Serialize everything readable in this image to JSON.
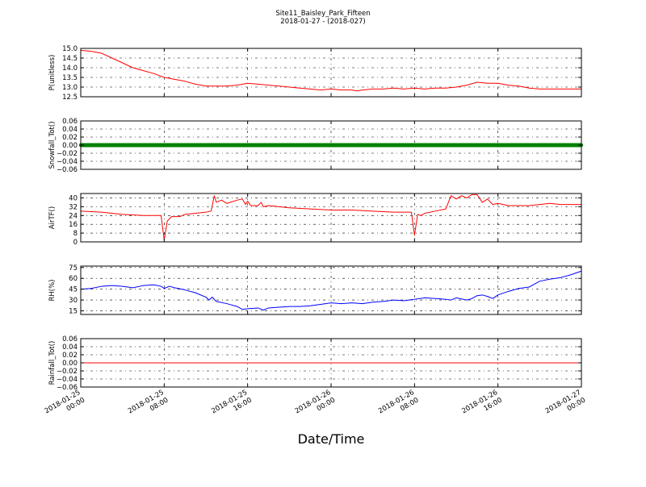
{
  "figure": {
    "title_line1": "Site11_Baisley_Park_Fifteen",
    "title_line2": "2018-01-27 - (2018-027)",
    "xlabel": "Date/Time",
    "x_tick_labels": [
      [
        "2018-01-25",
        "00:00"
      ],
      [
        "2018-01-25",
        "08:00"
      ],
      [
        "2018-01-25",
        "16:00"
      ],
      [
        "2018-01-26",
        "00:00"
      ],
      [
        "2018-01-26",
        "08:00"
      ],
      [
        "2018-01-26",
        "16:00"
      ],
      [
        "2018-01-27",
        "00:00"
      ]
    ]
  },
  "chart_data": [
    {
      "type": "line",
      "ylabel": "P(unitless)",
      "ylim": [
        12.5,
        15.0
      ],
      "yticks": [
        "15.0",
        "14.5",
        "14.0",
        "13.5",
        "13.0",
        "12.5"
      ],
      "ytick_values": [
        15.0,
        14.5,
        14.0,
        13.5,
        13.0,
        12.5
      ],
      "xlim_hours": [
        0,
        48
      ],
      "grid": true,
      "series": [
        {
          "color": "#ff0000",
          "points": [
            [
              0,
              14.9
            ],
            [
              1,
              14.85
            ],
            [
              2,
              14.75
            ],
            [
              3,
              14.5
            ],
            [
              4,
              14.25
            ],
            [
              5,
              14.0
            ],
            [
              6,
              13.85
            ],
            [
              7,
              13.7
            ],
            [
              8,
              13.5
            ],
            [
              9,
              13.4
            ],
            [
              10,
              13.3
            ],
            [
              11,
              13.15
            ],
            [
              12,
              13.05
            ],
            [
              13,
              13.05
            ],
            [
              14,
              13.05
            ],
            [
              15,
              13.1
            ],
            [
              16,
              13.2
            ],
            [
              17,
              13.15
            ],
            [
              18,
              13.1
            ],
            [
              19,
              13.05
            ],
            [
              20,
              13.0
            ],
            [
              21,
              12.95
            ],
            [
              22,
              12.9
            ],
            [
              23,
              12.85
            ],
            [
              24,
              12.9
            ],
            [
              25,
              12.85
            ],
            [
              26,
              12.85
            ],
            [
              26.5,
              12.8
            ],
            [
              27,
              12.85
            ],
            [
              28,
              12.9
            ],
            [
              29,
              12.9
            ],
            [
              30,
              12.95
            ],
            [
              31,
              12.9
            ],
            [
              32,
              12.95
            ],
            [
              33,
              12.9
            ],
            [
              34,
              12.95
            ],
            [
              35,
              12.95
            ],
            [
              36,
              13.0
            ],
            [
              37,
              13.1
            ],
            [
              38,
              13.25
            ],
            [
              39,
              13.2
            ],
            [
              40,
              13.2
            ],
            [
              41,
              13.1
            ],
            [
              42,
              13.05
            ],
            [
              43,
              12.95
            ],
            [
              44,
              12.9
            ],
            [
              45,
              12.9
            ],
            [
              46,
              12.9
            ],
            [
              47,
              12.9
            ],
            [
              48,
              12.9
            ]
          ]
        }
      ]
    },
    {
      "type": "line",
      "ylabel": "Snowfall_Tot()",
      "ylim": [
        -0.06,
        0.06
      ],
      "yticks": [
        "0.06",
        "0.04",
        "0.02",
        "0.00",
        "−0.02",
        "−0.04",
        "−0.06"
      ],
      "ytick_values": [
        0.06,
        0.04,
        0.02,
        0.0,
        -0.02,
        -0.04,
        -0.06
      ],
      "xlim_hours": [
        0,
        48
      ],
      "grid": true,
      "series": [
        {
          "color": "#008000",
          "marker": "dot",
          "points": [
            [
              0,
              0
            ],
            [
              48,
              0
            ]
          ]
        }
      ]
    },
    {
      "type": "line",
      "ylabel": "AirTF()",
      "ylim": [
        0,
        44
      ],
      "yticks": [
        "40",
        "32",
        "24",
        "16",
        "8",
        "0"
      ],
      "ytick_values": [
        40,
        32,
        24,
        16,
        8,
        0
      ],
      "xlim_hours": [
        0,
        48
      ],
      "grid": true,
      "series": [
        {
          "color": "#ff0000",
          "points": [
            [
              0,
              28
            ],
            [
              2,
              27
            ],
            [
              4,
              25
            ],
            [
              6,
              24
            ],
            [
              7,
              24
            ],
            [
              7.7,
              24
            ],
            [
              8,
              2
            ],
            [
              8.3,
              19
            ],
            [
              8.7,
              23
            ],
            [
              9.5,
              23
            ],
            [
              10,
              25
            ],
            [
              11,
              26
            ],
            [
              12,
              27
            ],
            [
              12.5,
              28
            ],
            [
              12.8,
              42
            ],
            [
              13,
              36
            ],
            [
              13.5,
              38
            ],
            [
              14,
              35
            ],
            [
              15,
              38
            ],
            [
              15.5,
              39
            ],
            [
              15.8,
              34
            ],
            [
              16,
              37
            ],
            [
              16.3,
              33
            ],
            [
              17,
              33
            ],
            [
              17.3,
              36
            ],
            [
              17.5,
              32
            ],
            [
              18,
              33
            ],
            [
              19,
              32
            ],
            [
              20,
              31
            ],
            [
              22,
              30
            ],
            [
              24,
              29
            ],
            [
              26,
              29
            ],
            [
              28,
              28
            ],
            [
              30,
              27
            ],
            [
              31.7,
              27
            ],
            [
              32,
              6
            ],
            [
              32.3,
              25
            ],
            [
              32.6,
              24
            ],
            [
              33,
              26
            ],
            [
              34,
              28
            ],
            [
              35,
              30
            ],
            [
              35.5,
              42
            ],
            [
              36,
              39
            ],
            [
              36.5,
              42
            ],
            [
              37,
              40
            ],
            [
              37.5,
              43
            ],
            [
              38,
              43
            ],
            [
              38.5,
              36
            ],
            [
              39,
              39
            ],
            [
              39.5,
              34
            ],
            [
              40,
              35
            ],
            [
              41,
              33
            ],
            [
              42,
              33
            ],
            [
              43,
              33
            ],
            [
              44,
              34
            ],
            [
              45,
              35
            ],
            [
              46,
              34
            ],
            [
              47,
              34
            ],
            [
              48,
              34
            ]
          ]
        }
      ]
    },
    {
      "type": "line",
      "ylabel": "RH(%)",
      "ylim": [
        10,
        77
      ],
      "yticks": [
        "75",
        "60",
        "45",
        "30",
        "15"
      ],
      "ytick_values": [
        75,
        60,
        45,
        30,
        15
      ],
      "xlim_hours": [
        0,
        48
      ],
      "grid": true,
      "series": [
        {
          "color": "#0000ff",
          "points": [
            [
              0,
              45
            ],
            [
              1,
              46
            ],
            [
              2,
              49
            ],
            [
              3,
              50
            ],
            [
              4,
              49
            ],
            [
              5,
              47
            ],
            [
              6,
              50
            ],
            [
              7,
              51
            ],
            [
              7.7,
              49
            ],
            [
              8,
              46
            ],
            [
              8.5,
              49
            ],
            [
              9,
              47
            ],
            [
              10,
              44
            ],
            [
              11,
              40
            ],
            [
              12,
              34
            ],
            [
              12.3,
              30
            ],
            [
              12.6,
              34
            ],
            [
              13,
              28
            ],
            [
              14,
              25
            ],
            [
              15,
              21
            ],
            [
              15.5,
              17
            ],
            [
              16,
              18
            ],
            [
              17,
              19
            ],
            [
              17.5,
              16
            ],
            [
              18,
              19
            ],
            [
              19,
              20
            ],
            [
              20,
              21
            ],
            [
              21,
              21
            ],
            [
              22,
              22
            ],
            [
              23,
              24
            ],
            [
              24,
              26
            ],
            [
              25,
              25
            ],
            [
              26,
              26
            ],
            [
              27,
              25
            ],
            [
              28,
              27
            ],
            [
              29,
              28
            ],
            [
              30,
              30
            ],
            [
              31,
              29
            ],
            [
              32,
              31
            ],
            [
              33,
              33
            ],
            [
              34,
              32
            ],
            [
              35,
              31
            ],
            [
              35.5,
              30
            ],
            [
              36,
              33
            ],
            [
              37,
              30
            ],
            [
              37.5,
              32
            ],
            [
              38,
              36
            ],
            [
              38.5,
              37
            ],
            [
              39,
              35
            ],
            [
              39.5,
              32
            ],
            [
              40,
              37
            ],
            [
              41,
              42
            ],
            [
              42,
              46
            ],
            [
              43,
              48
            ],
            [
              44,
              56
            ],
            [
              45,
              59
            ],
            [
              46,
              61
            ],
            [
              47,
              65
            ],
            [
              48,
              70
            ]
          ]
        }
      ]
    },
    {
      "type": "line",
      "ylabel": "Rainfall_Tot()",
      "ylim": [
        -0.06,
        0.06
      ],
      "yticks": [
        "0.06",
        "0.04",
        "0.02",
        "0.00",
        "−0.02",
        "−0.04",
        "−0.06"
      ],
      "ytick_values": [
        0.06,
        0.04,
        0.02,
        0.0,
        -0.02,
        -0.04,
        -0.06
      ],
      "xlim_hours": [
        0,
        48
      ],
      "grid": true,
      "series": [
        {
          "color": "#ff0000",
          "points": [
            [
              0,
              0
            ],
            [
              48,
              0
            ]
          ]
        }
      ]
    }
  ]
}
